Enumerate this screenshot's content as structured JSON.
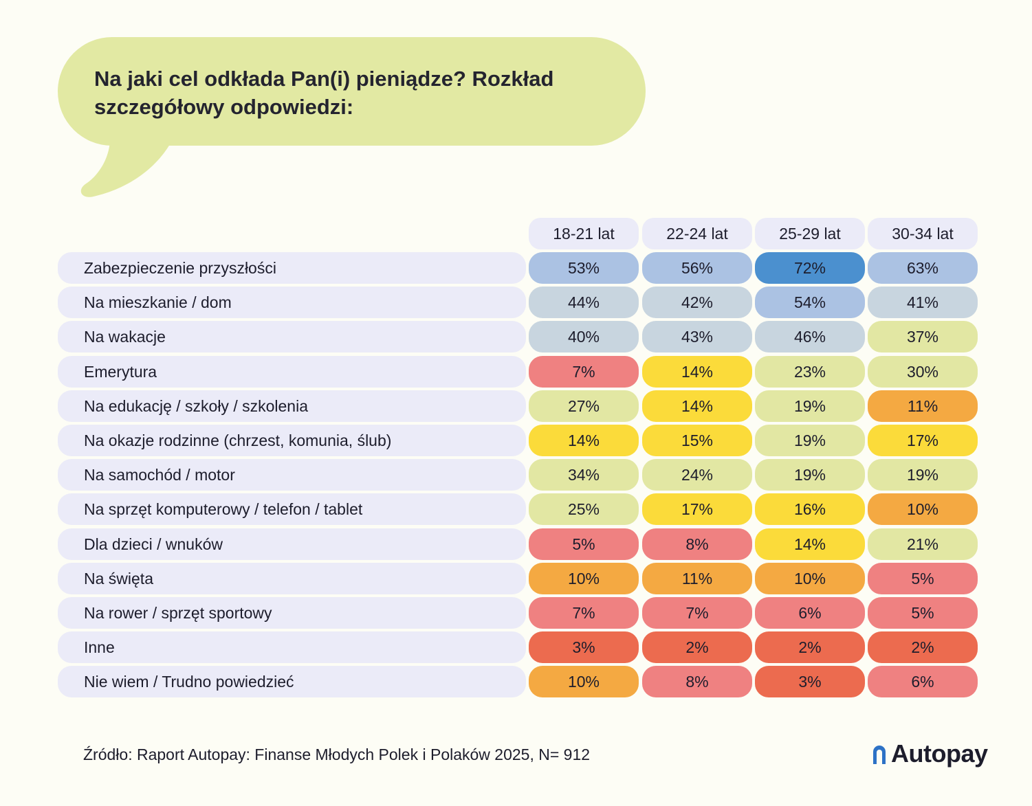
{
  "title": "Na jaki cel odkłada Pan(i) pieniądze? Rozkład szczegółowy odpowiedzi:",
  "source": "Źródło: Raport Autopay: Finanse Młodych Polek i Polaków 2025, N= 912",
  "logo_text": "Autopay",
  "logo_icon": "autopay-arch-icon",
  "colors": {
    "bubble": "#e2e9a3",
    "header_bg": "#ebebf8",
    "row_bg": "#ebebf8",
    "scale": {
      "dark_blue": "#4b90cf",
      "light_blue": "#abc2e3",
      "grey_blue": "#c8d5df",
      "pale_green": "#e2e7a3",
      "yellow": "#fbdb3a",
      "orange": "#f4a942",
      "pink": "#ef8181",
      "red": "#ec6b4f"
    }
  },
  "chart_data": {
    "type": "table",
    "title": "Na jaki cel odkłada Pan(i) pieniądze? Rozkład szczegółowy odpowiedzi:",
    "columns": [
      "18-21 lat",
      "22-24 lat",
      "25-29 lat",
      "30-34 lat"
    ],
    "unit": "%",
    "rows": [
      {
        "label": "Zabezpieczenie przyszłości",
        "values": [
          53,
          56,
          72,
          63
        ]
      },
      {
        "label": "Na mieszkanie / dom",
        "values": [
          44,
          42,
          54,
          41
        ]
      },
      {
        "label": "Na wakacje",
        "values": [
          40,
          43,
          46,
          37
        ]
      },
      {
        "label": "Emerytura",
        "values": [
          7,
          14,
          23,
          30
        ]
      },
      {
        "label": "Na edukację / szkoły / szkolenia",
        "values": [
          27,
          14,
          19,
          11
        ]
      },
      {
        "label": "Na okazje rodzinne (chrzest, komunia, ślub)",
        "values": [
          14,
          15,
          19,
          17
        ]
      },
      {
        "label": "Na samochód / motor",
        "values": [
          34,
          24,
          19,
          19
        ]
      },
      {
        "label": "Na sprzęt komputerowy / telefon / tablet",
        "values": [
          25,
          17,
          16,
          10
        ]
      },
      {
        "label": "Dla dzieci / wnuków",
        "values": [
          5,
          8,
          14,
          21
        ]
      },
      {
        "label": "Na święta",
        "values": [
          10,
          11,
          10,
          5
        ]
      },
      {
        "label": "Na rower / sprzęt sportowy",
        "values": [
          7,
          7,
          6,
          5
        ]
      },
      {
        "label": "Inne",
        "values": [
          3,
          2,
          2,
          2
        ]
      },
      {
        "label": "Nie wiem / Trudno powiedzieć",
        "values": [
          10,
          8,
          3,
          6
        ]
      }
    ]
  }
}
